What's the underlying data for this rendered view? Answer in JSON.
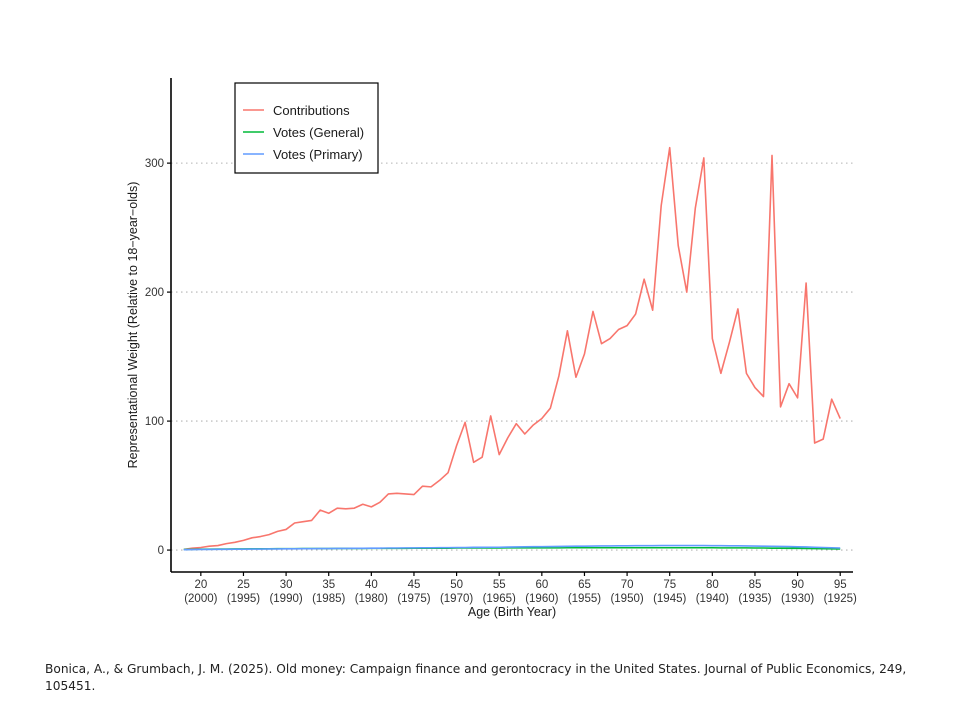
{
  "chart_data": {
    "type": "line",
    "title": "",
    "xlabel": "Age (Birth Year)",
    "ylabel": "Representational Weight (Relative to 18−year−olds)",
    "xlim": [
      16.5,
      96.5
    ],
    "ylim": [
      -17,
      366
    ],
    "grid": "horizontal-dotted",
    "legend_position": "top-left",
    "x_ticks": [
      {
        "value": 20,
        "label": "20",
        "sublabel": "(2000)"
      },
      {
        "value": 25,
        "label": "25",
        "sublabel": "(1995)"
      },
      {
        "value": 30,
        "label": "30",
        "sublabel": "(1990)"
      },
      {
        "value": 35,
        "label": "35",
        "sublabel": "(1985)"
      },
      {
        "value": 40,
        "label": "40",
        "sublabel": "(1980)"
      },
      {
        "value": 45,
        "label": "45",
        "sublabel": "(1975)"
      },
      {
        "value": 50,
        "label": "50",
        "sublabel": "(1970)"
      },
      {
        "value": 55,
        "label": "55",
        "sublabel": "(1965)"
      },
      {
        "value": 60,
        "label": "60",
        "sublabel": "(1960)"
      },
      {
        "value": 65,
        "label": "65",
        "sublabel": "(1955)"
      },
      {
        "value": 70,
        "label": "70",
        "sublabel": "(1950)"
      },
      {
        "value": 75,
        "label": "75",
        "sublabel": "(1945)"
      },
      {
        "value": 80,
        "label": "80",
        "sublabel": "(1940)"
      },
      {
        "value": 85,
        "label": "85",
        "sublabel": "(1935)"
      },
      {
        "value": 90,
        "label": "90",
        "sublabel": "(1930)"
      },
      {
        "value": 95,
        "label": "95",
        "sublabel": "(1925)"
      }
    ],
    "y_ticks": [
      {
        "value": 0,
        "label": "0"
      },
      {
        "value": 100,
        "label": "100"
      },
      {
        "value": 200,
        "label": "200"
      },
      {
        "value": 300,
        "label": "300"
      }
    ],
    "x": [
      18,
      19,
      20,
      21,
      22,
      23,
      24,
      25,
      26,
      27,
      28,
      29,
      30,
      31,
      32,
      33,
      34,
      35,
      36,
      37,
      38,
      39,
      40,
      41,
      42,
      43,
      44,
      45,
      46,
      47,
      48,
      49,
      50,
      51,
      52,
      53,
      54,
      55,
      56,
      57,
      58,
      59,
      60,
      61,
      62,
      63,
      64,
      65,
      66,
      67,
      68,
      69,
      70,
      71,
      72,
      73,
      74,
      75,
      76,
      77,
      78,
      79,
      80,
      81,
      82,
      83,
      84,
      85,
      86,
      87,
      88,
      89,
      90,
      91,
      92,
      93,
      94,
      95
    ],
    "series": [
      {
        "name": "Contributions",
        "color": "#f8766d",
        "values": [
          0.5,
          1.5,
          2,
          3,
          3.5,
          5,
          6,
          7.5,
          9.5,
          10.5,
          12,
          14.5,
          16,
          21,
          22,
          23,
          31,
          28.5,
          32.5,
          32,
          32.5,
          35.5,
          33.5,
          37,
          43.5,
          44,
          43.5,
          43,
          49.5,
          49,
          54,
          60,
          81,
          99,
          68,
          72,
          104,
          74,
          87,
          98,
          90,
          97,
          102,
          110,
          135,
          170,
          134,
          152,
          185,
          160,
          164,
          171,
          174,
          183,
          210,
          186,
          267,
          312,
          236,
          200,
          265,
          304,
          164,
          137,
          161,
          187,
          137,
          126,
          119,
          306,
          111,
          129,
          118,
          207,
          83,
          86,
          117,
          102
        ]
      },
      {
        "name": "Votes (General)",
        "color": "#00ba38",
        "values": [
          0.5,
          0.6,
          0.7,
          0.7,
          0.8,
          0.8,
          0.9,
          0.9,
          1.0,
          1.0,
          1.0,
          1.1,
          1.1,
          1.1,
          1.2,
          1.2,
          1.2,
          1.2,
          1.3,
          1.3,
          1.3,
          1.3,
          1.4,
          1.4,
          1.4,
          1.4,
          1.4,
          1.5,
          1.5,
          1.5,
          1.5,
          1.5,
          1.6,
          1.6,
          1.6,
          1.6,
          1.6,
          1.6,
          1.7,
          1.7,
          1.7,
          1.7,
          1.7,
          1.7,
          1.7,
          1.8,
          1.8,
          1.8,
          1.8,
          1.8,
          1.8,
          1.8,
          1.8,
          1.8,
          1.8,
          1.8,
          1.8,
          1.8,
          1.8,
          1.8,
          1.8,
          1.8,
          1.8,
          1.7,
          1.7,
          1.7,
          1.7,
          1.6,
          1.6,
          1.5,
          1.5,
          1.4,
          1.4,
          1.3,
          1.2,
          1.1,
          1.0,
          0.9
        ]
      },
      {
        "name": "Votes (Primary)",
        "color": "#619cff",
        "values": [
          0.3,
          0.4,
          0.5,
          0.5,
          0.6,
          0.6,
          0.7,
          0.7,
          0.8,
          0.8,
          0.9,
          0.9,
          1.0,
          1.0,
          1.1,
          1.1,
          1.2,
          1.2,
          1.3,
          1.3,
          1.4,
          1.4,
          1.5,
          1.5,
          1.6,
          1.6,
          1.7,
          1.7,
          1.8,
          1.8,
          1.9,
          1.9,
          2.0,
          2.0,
          2.1,
          2.1,
          2.2,
          2.2,
          2.3,
          2.4,
          2.5,
          2.6,
          2.6,
          2.7,
          2.8,
          2.9,
          3.0,
          3.0,
          3.1,
          3.2,
          3.2,
          3.3,
          3.3,
          3.4,
          3.4,
          3.4,
          3.5,
          3.5,
          3.5,
          3.5,
          3.5,
          3.5,
          3.4,
          3.4,
          3.3,
          3.3,
          3.2,
          3.1,
          3.0,
          2.9,
          2.8,
          2.7,
          2.5,
          2.4,
          2.2,
          2.0,
          1.8,
          1.6
        ]
      }
    ]
  },
  "legend": {
    "items": [
      {
        "label": "Contributions",
        "color": "#f8766d"
      },
      {
        "label": "Votes (General)",
        "color": "#00ba38"
      },
      {
        "label": "Votes (Primary)",
        "color": "#619cff"
      }
    ]
  },
  "citation": {
    "text": "Bonica, A., & Grumbach, J. M. (2025). Old money: Campaign finance and gerontocracy in the United States. Journal of Public Economics, 249, 105451."
  }
}
